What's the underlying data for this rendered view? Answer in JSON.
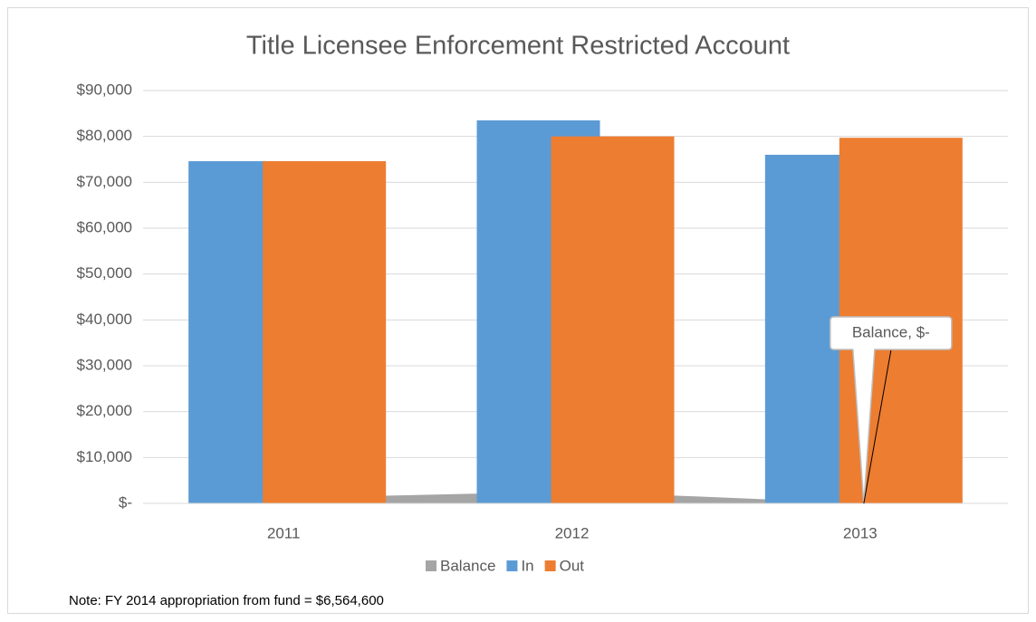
{
  "chart_data": {
    "type": "bar",
    "title": "Title Licensee Enforcement Restricted Account",
    "categories": [
      "2011",
      "2012",
      "2013"
    ],
    "series": [
      {
        "name": "Balance",
        "type": "area",
        "color": "#a5a5a5",
        "values": [
          1200,
          2600,
          0
        ],
        "value_labels": [
          null,
          null,
          "Balance, $-"
        ]
      },
      {
        "name": "In",
        "type": "bar",
        "color": "#5b9bd5",
        "values": [
          74600,
          83500,
          76000
        ]
      },
      {
        "name": "Out",
        "type": "bar",
        "color": "#ed7d31",
        "values": [
          74600,
          80000,
          79700
        ]
      }
    ],
    "ylim": [
      0,
      90000
    ],
    "yticks": [
      {
        "value": 0,
        "label": "$-"
      },
      {
        "value": 10000,
        "label": "$10,000"
      },
      {
        "value": 20000,
        "label": "$20,000"
      },
      {
        "value": 30000,
        "label": "$30,000"
      },
      {
        "value": 40000,
        "label": "$40,000"
      },
      {
        "value": 50000,
        "label": "$50,000"
      },
      {
        "value": 60000,
        "label": "$60,000"
      },
      {
        "value": 70000,
        "label": "$70,000"
      },
      {
        "value": 80000,
        "label": "$80,000"
      },
      {
        "value": 90000,
        "label": "$90,000"
      }
    ],
    "grid": true,
    "legend": "bottom",
    "note": "Note: FY 2014 appropriation from fund = $6,564,600"
  }
}
